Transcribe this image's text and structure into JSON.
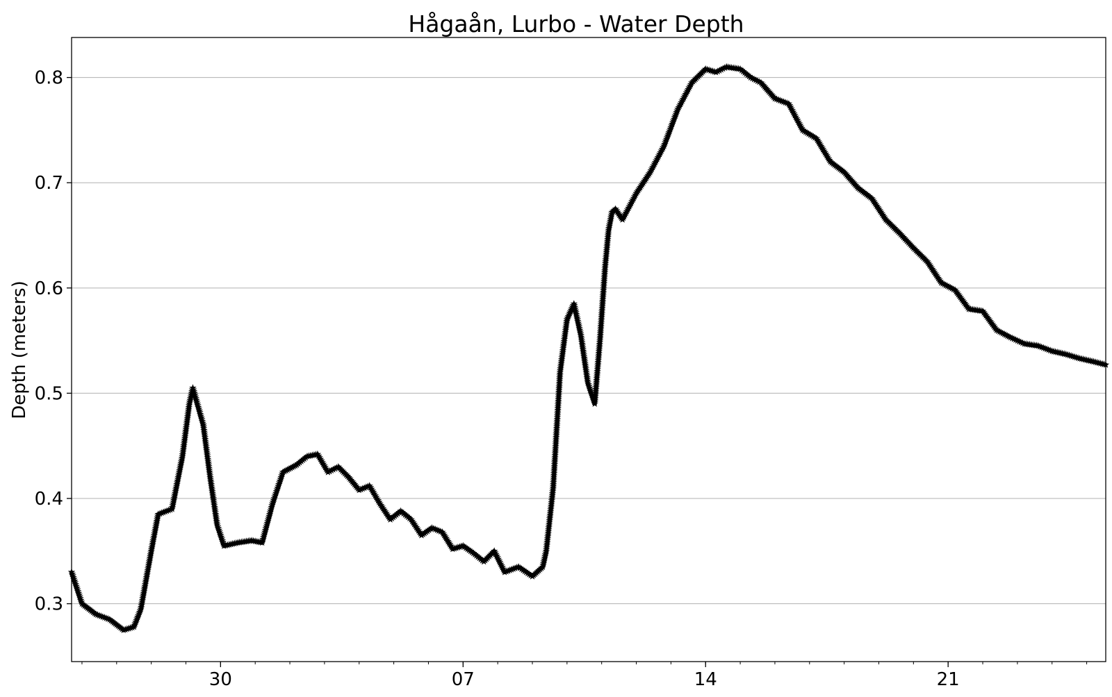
{
  "chart_data": {
    "type": "line",
    "title": "Hågaån, Lurbo - Water Depth",
    "xlabel": "",
    "ylabel": "Depth (meters)",
    "x_tick_labels": [
      "30",
      "07",
      "14",
      "21"
    ],
    "x_tick_days": [
      30,
      37,
      44,
      51
    ],
    "xlim": [
      25.7,
      55.55
    ],
    "ylim": [
      0.245,
      0.838
    ],
    "y_ticks": [
      0.3,
      0.4,
      0.5,
      0.6,
      0.7,
      0.8
    ],
    "grid": "horizontal",
    "marker": "star",
    "line_color": "#000000",
    "series": [
      {
        "x": [
          25.7,
          26.0,
          26.4,
          26.8,
          27.2,
          27.5,
          27.7,
          28.0,
          28.2,
          28.6,
          28.9,
          29.1,
          29.2,
          29.5,
          29.7,
          29.9,
          30.1,
          30.5,
          30.9,
          31.2,
          31.5,
          31.8,
          32.2,
          32.5,
          32.8,
          33.1,
          33.4,
          33.7,
          34.0,
          34.3,
          34.6,
          34.9,
          35.2,
          35.5,
          35.8,
          36.1,
          36.4,
          36.7,
          37.0,
          37.3,
          37.6,
          37.9,
          38.2,
          38.6,
          39.0,
          39.3,
          39.4,
          39.6,
          39.8,
          40.0,
          40.2,
          40.4,
          40.6,
          40.8,
          40.95,
          41.1,
          41.2,
          41.3,
          41.4,
          41.6,
          42.0,
          42.4,
          42.8,
          43.2,
          43.6,
          44.0,
          44.3,
          44.6,
          45.0,
          45.3,
          45.6,
          46.0,
          46.4,
          46.8,
          47.2,
          47.6,
          48.0,
          48.4,
          48.8,
          49.2,
          49.6,
          50.0,
          50.4,
          50.8,
          51.2,
          51.6,
          52.0,
          52.4,
          52.8,
          53.2,
          53.6,
          54.0,
          54.4,
          54.8,
          55.2,
          55.55
        ],
        "y": [
          0.33,
          0.3,
          0.29,
          0.285,
          0.275,
          0.278,
          0.295,
          0.35,
          0.385,
          0.39,
          0.44,
          0.49,
          0.505,
          0.47,
          0.42,
          0.375,
          0.355,
          0.358,
          0.36,
          0.358,
          0.395,
          0.425,
          0.432,
          0.44,
          0.442,
          0.425,
          0.43,
          0.42,
          0.408,
          0.412,
          0.395,
          0.38,
          0.388,
          0.38,
          0.365,
          0.372,
          0.368,
          0.352,
          0.355,
          0.348,
          0.34,
          0.35,
          0.33,
          0.335,
          0.326,
          0.335,
          0.35,
          0.41,
          0.52,
          0.57,
          0.585,
          0.555,
          0.51,
          0.49,
          0.55,
          0.62,
          0.655,
          0.672,
          0.675,
          0.665,
          0.69,
          0.71,
          0.735,
          0.77,
          0.795,
          0.808,
          0.805,
          0.81,
          0.808,
          0.8,
          0.795,
          0.78,
          0.775,
          0.75,
          0.742,
          0.72,
          0.71,
          0.695,
          0.685,
          0.665,
          0.652,
          0.638,
          0.625,
          0.605,
          0.598,
          0.58,
          0.578,
          0.56,
          0.553,
          0.547,
          0.545,
          0.54,
          0.537,
          0.533,
          0.53,
          0.527
        ]
      }
    ]
  }
}
